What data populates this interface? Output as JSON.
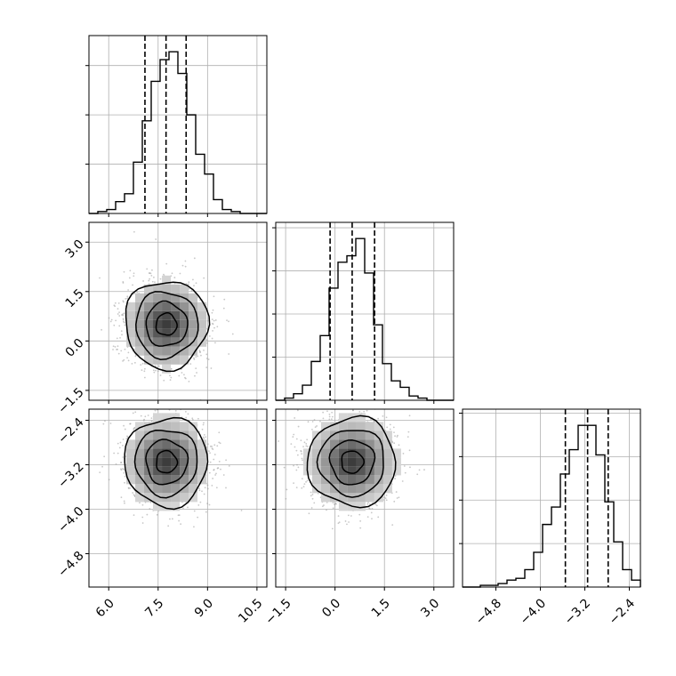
{
  "chart_data": {
    "type": "corner",
    "params": [
      {
        "name": "",
        "range": [
          5.4,
          10.8
        ],
        "ticks": [
          "6.0",
          "7.5",
          "9.0",
          "10.5"
        ],
        "tick_values": [
          6.0,
          7.5,
          9.0,
          10.5
        ]
      },
      {
        "name": "",
        "range": [
          -1.8,
          3.6
        ],
        "ticks": [
          "-1.5",
          "0.0",
          "1.5",
          "3.0"
        ],
        "tick_values": [
          -1.5,
          0.0,
          1.5,
          3.0
        ]
      },
      {
        "name": "",
        "range": [
          -5.4,
          -2.2
        ],
        "ticks": [
          "-4.8",
          "-4.0",
          "-3.2",
          "-2.4"
        ],
        "tick_values": [
          -4.8,
          -4.0,
          -3.2,
          -2.4
        ]
      }
    ],
    "histograms": [
      {
        "param": 0,
        "bin_edges": [
          5.4,
          5.67,
          5.94,
          6.21,
          6.48,
          6.75,
          7.02,
          7.29,
          7.56,
          7.83,
          8.1,
          8.37,
          8.64,
          8.91,
          9.18,
          9.45,
          9.72,
          9.99,
          10.26,
          10.53,
          10.8
        ],
        "counts": [
          0,
          1,
          2,
          6,
          10,
          26,
          47,
          67,
          78,
          82,
          71,
          50,
          30,
          20,
          7,
          2,
          1,
          0,
          0,
          0
        ],
        "quantiles": [
          7.1,
          7.74,
          8.35
        ]
      },
      {
        "param": 1,
        "bin_edges": [
          -1.8,
          -1.53,
          -1.26,
          -0.99,
          -0.72,
          -0.45,
          -0.18,
          0.09,
          0.36,
          0.63,
          0.9,
          1.17,
          1.44,
          1.71,
          1.98,
          2.25,
          2.52,
          2.79,
          3.06,
          3.33,
          3.6
        ],
        "counts": [
          0,
          1,
          3,
          7,
          18,
          30,
          52,
          64,
          67,
          75,
          59,
          35,
          17,
          9,
          6,
          2,
          1,
          0,
          0,
          0
        ],
        "quantiles": [
          -0.15,
          0.52,
          1.2
        ]
      },
      {
        "param": 2,
        "bin_edges": [
          -5.4,
          -5.24,
          -5.08,
          -4.92,
          -4.76,
          -4.6,
          -4.44,
          -4.28,
          -4.12,
          -3.96,
          -3.8,
          -3.64,
          -3.48,
          -3.32,
          -3.16,
          -3.0,
          -2.84,
          -2.68,
          -2.52,
          -2.36,
          -2.2
        ],
        "counts": [
          0,
          0,
          1,
          1,
          2,
          4,
          5,
          10,
          20,
          36,
          46,
          65,
          79,
          93,
          93,
          76,
          49,
          26,
          10,
          4
        ],
        "quantiles": [
          -3.55,
          -3.15,
          -2.78
        ]
      }
    ],
    "pairs": [
      {
        "x_param": 0,
        "y_param": 1,
        "center": [
          7.75,
          0.5
        ],
        "sigma": [
          0.63,
          0.67
        ],
        "contour_levels": [
          0.5,
          1.0,
          1.5,
          2.0
        ]
      },
      {
        "x_param": 0,
        "y_param": 2,
        "center": [
          7.75,
          -3.15
        ],
        "sigma": [
          0.63,
          0.4
        ],
        "contour_levels": [
          0.5,
          1.0,
          1.5,
          2.0
        ]
      },
      {
        "x_param": 1,
        "y_param": 2,
        "center": [
          0.52,
          -3.15
        ],
        "sigma": [
          0.67,
          0.4
        ],
        "contour_levels": [
          0.5,
          1.0,
          1.5,
          2.0
        ]
      }
    ],
    "grid": true,
    "colors": {
      "line": "#000000",
      "grid": "#b0b0b0",
      "points": "#9a9a9a"
    }
  }
}
